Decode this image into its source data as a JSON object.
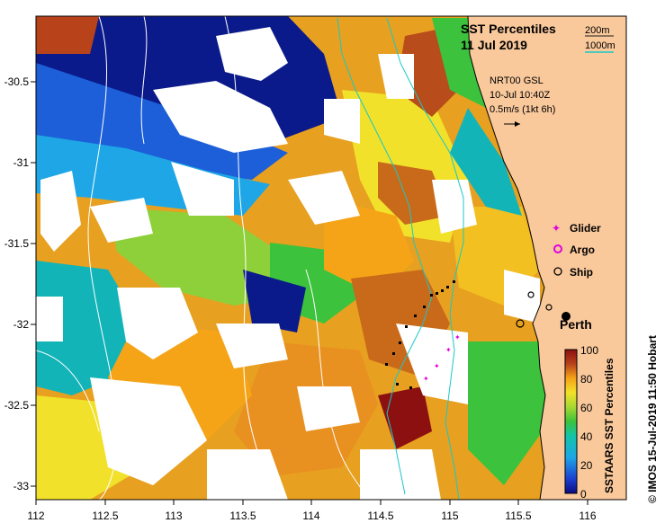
{
  "title": {
    "line1": "SST Percentiles",
    "line2": "11 Jul 2019"
  },
  "isobaths": [
    {
      "label": "200m",
      "color": "#1a1a1a"
    },
    {
      "label": "1000m",
      "color": "#19c8c8"
    }
  ],
  "current_info": {
    "line1": "NRT00 GSL",
    "line2": "10-Jul 10:40Z",
    "line3": "0.5m/s (1kt 6h)"
  },
  "legend": {
    "glider": "Glider",
    "argo": "Argo",
    "ship": "Ship"
  },
  "city": "Perth",
  "colorbar": {
    "title": "SSTAARS SST Percentiles",
    "ticks": [
      "100",
      "80",
      "60",
      "40",
      "20",
      "0"
    ],
    "colors": [
      "#0b0b80",
      "#1c3fd0",
      "#1ea6e6",
      "#12c4a8",
      "#3cc23c",
      "#a6d832",
      "#f2e12a",
      "#f5a418",
      "#d9741a",
      "#b8421a",
      "#8c1010"
    ]
  },
  "axes": {
    "x_ticks": [
      "112",
      "112.5",
      "113",
      "113.5",
      "114",
      "114.5",
      "115",
      "115.5",
      "116"
    ],
    "y_ticks": [
      "-30.5",
      "-31",
      "-31.5",
      "-32",
      "-32.5",
      "-33"
    ]
  },
  "copyright": "© IMOS 15-Jul-2019 11:50 Hobart",
  "colors": {
    "land": "#f9c89b",
    "cloud": "#ffffff"
  }
}
